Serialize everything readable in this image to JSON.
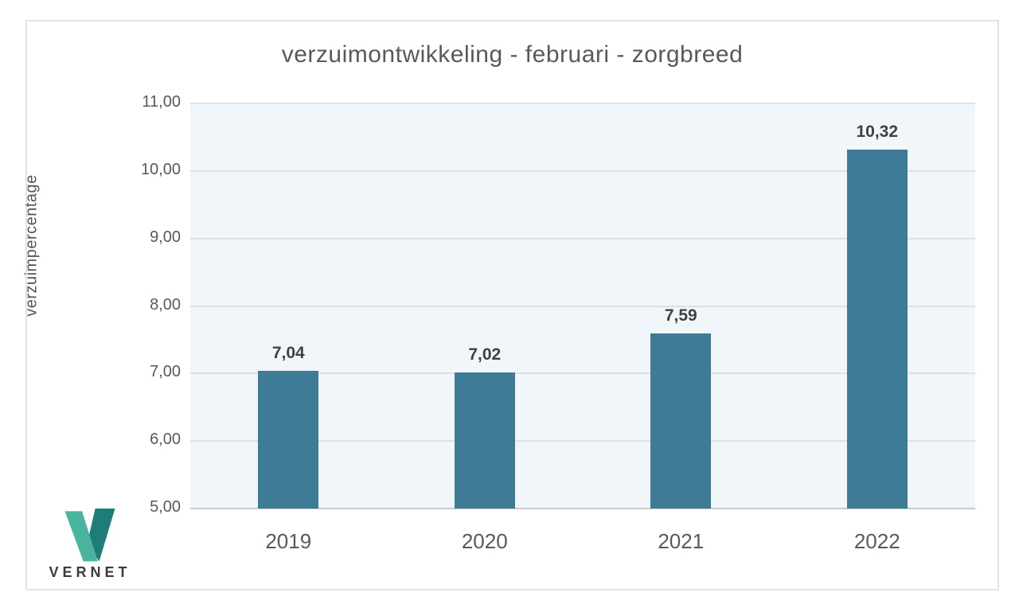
{
  "chart_data": {
    "type": "bar",
    "title": "verzuimontwikkeling - februari - zorgbreed",
    "xlabel": "",
    "ylabel": "verzuimpercentage",
    "categories": [
      "2019",
      "2020",
      "2021",
      "2022"
    ],
    "values": [
      7.04,
      7.02,
      7.59,
      10.32
    ],
    "value_labels": [
      "7,04",
      "7,02",
      "7,59",
      "10,32"
    ],
    "y_ticks": [
      {
        "value": 5,
        "label": "5,00"
      },
      {
        "value": 6,
        "label": "6,00"
      },
      {
        "value": 7,
        "label": "7,00"
      },
      {
        "value": 8,
        "label": "8,00"
      },
      {
        "value": 9,
        "label": "9,00"
      },
      {
        "value": 10,
        "label": "10,00"
      },
      {
        "value": 11,
        "label": "11,00"
      }
    ],
    "ylim": [
      5,
      11
    ],
    "grid": true,
    "legend": false,
    "colors": {
      "bar": "#3d7b97",
      "plot_background": "#f1f6fa",
      "gridline": "#dde1e5",
      "axis_line": "#c6cbd0",
      "title_text": "#595959",
      "tick_text": "#595959",
      "value_label_text": "#404040"
    }
  },
  "branding": {
    "logo_text": "VERNET",
    "logo_colors": {
      "light": "#4ab4a0",
      "dark": "#1e7d79"
    }
  }
}
